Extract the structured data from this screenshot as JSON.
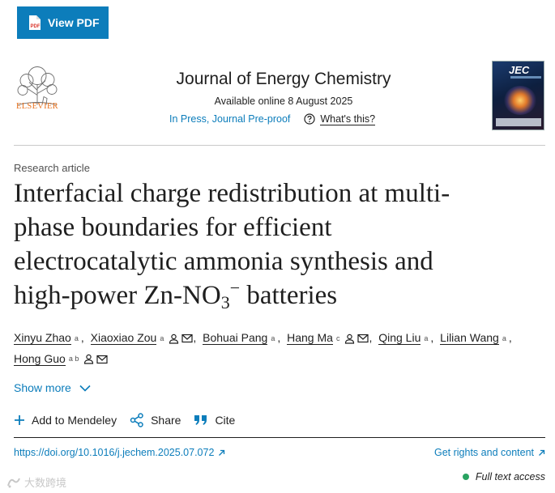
{
  "toolbar": {
    "view_pdf_label": "View PDF"
  },
  "publisher": {
    "name": "ELSEVIER",
    "color": "#e9711c"
  },
  "journal": {
    "title": "Journal of Energy Chemistry",
    "available": "Available online 8 August 2025",
    "status": "In Press, Journal Pre-proof",
    "whats_this": "What's this?",
    "cover_title": "JEC"
  },
  "article": {
    "type": "Research article",
    "title_lines": [
      "Interfacial charge redistribution at multi-",
      "phase boundaries for efficient",
      "electrocatalytic ammonia synthesis and"
    ],
    "title_last": {
      "pre": "high-power Zn-NO",
      "sub": "3",
      "sup": "−",
      "post": " batteries"
    },
    "authors": [
      {
        "name": "Xinyu Zhao",
        "aff": "a"
      },
      {
        "name": "Xiaoxiao Zou",
        "aff": "a"
      },
      {
        "name": "Bohuai Pang",
        "aff": "a"
      },
      {
        "name": "Hang Ma",
        "aff": "c"
      },
      {
        "name": "Qing Liu",
        "aff": "a"
      },
      {
        "name": "Lilian Wang",
        "aff": "a"
      },
      {
        "name": "Hong Guo",
        "aff": "a b"
      }
    ],
    "show_more": "Show more",
    "doi": "https://doi.org/10.1016/j.jechem.2025.07.072",
    "rights": "Get rights and content",
    "access": "Full text access"
  },
  "actions": {
    "mendeley": "Add to Mendeley",
    "share": "Share",
    "cite": "Cite"
  },
  "watermark": "大数跨境",
  "colors": {
    "link": "#0c7dbb",
    "button": "#0c7dbb",
    "access_dot": "#29a361"
  }
}
